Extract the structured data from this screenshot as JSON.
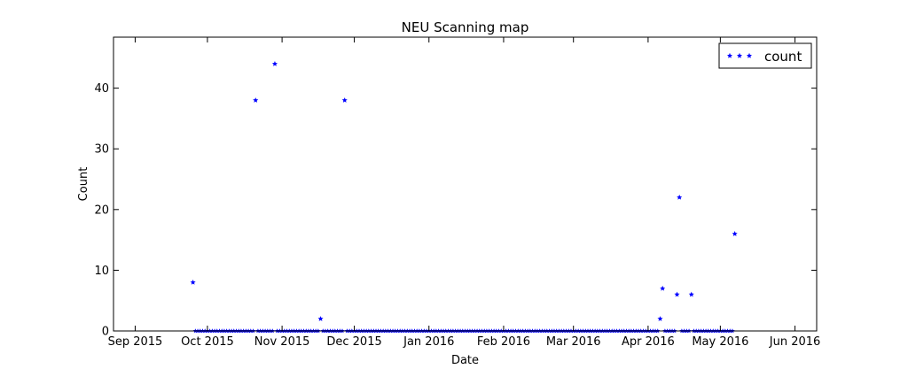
{
  "chart_data": {
    "type": "scatter",
    "title": "NEU Scanning map",
    "xlabel": "Date",
    "ylabel": "Count",
    "xlim": [
      "2015-08-23",
      "2016-06-10"
    ],
    "ylim": [
      0,
      48.4
    ],
    "x_ticks": [
      {
        "date": "2015-09-01",
        "label": "Sep 2015"
      },
      {
        "date": "2015-10-01",
        "label": "Oct 2015"
      },
      {
        "date": "2015-11-01",
        "label": "Nov 2015"
      },
      {
        "date": "2015-12-01",
        "label": "Dec 2015"
      },
      {
        "date": "2016-01-01",
        "label": "Jan 2016"
      },
      {
        "date": "2016-02-01",
        "label": "Feb 2016"
      },
      {
        "date": "2016-03-01",
        "label": "Mar 2016"
      },
      {
        "date": "2016-04-01",
        "label": "Apr 2016"
      },
      {
        "date": "2016-05-01",
        "label": "May 2016"
      },
      {
        "date": "2016-06-01",
        "label": "Jun 2016"
      }
    ],
    "y_ticks": [
      0,
      10,
      20,
      30,
      40
    ],
    "legend": {
      "position": "top-right",
      "entries": [
        "count"
      ]
    },
    "grid": false,
    "series": [
      {
        "name": "count",
        "color": "#0000ff",
        "marker": "star",
        "zero_range": {
          "start": "2015-09-25",
          "end": "2016-05-07"
        },
        "points": [
          {
            "x": "2015-09-25",
            "y": 8
          },
          {
            "x": "2015-10-21",
            "y": 38
          },
          {
            "x": "2015-10-29",
            "y": 44
          },
          {
            "x": "2015-11-17",
            "y": 2
          },
          {
            "x": "2015-11-27",
            "y": 38
          },
          {
            "x": "2016-04-06",
            "y": 2
          },
          {
            "x": "2016-04-07",
            "y": 7
          },
          {
            "x": "2016-04-13",
            "y": 6
          },
          {
            "x": "2016-04-14",
            "y": 22
          },
          {
            "x": "2016-04-19",
            "y": 6
          },
          {
            "x": "2016-05-07",
            "y": 16
          }
        ]
      }
    ]
  }
}
